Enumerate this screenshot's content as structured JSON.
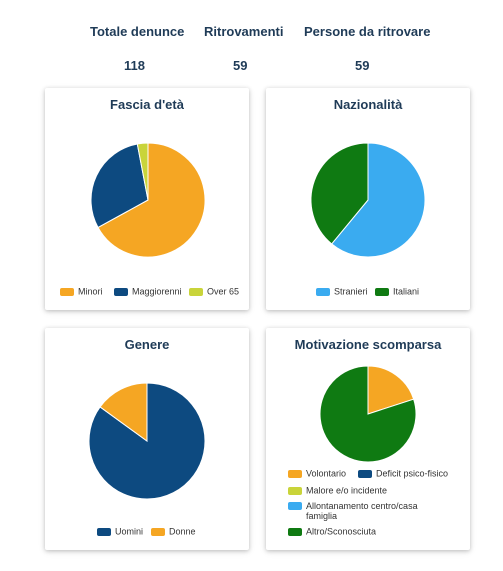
{
  "stats": [
    {
      "label": "Totale denunce",
      "value": "118"
    },
    {
      "label": "Ritrovamenti",
      "value": "59"
    },
    {
      "label": "Persone da ritrovare",
      "value": "59"
    }
  ],
  "chart_data": [
    {
      "type": "pie",
      "title": "Fascia d'età",
      "categories": [
        "Minori",
        "Maggiorenni",
        "Over 65"
      ],
      "values": [
        67,
        30,
        3
      ],
      "colors": [
        "#f5a623",
        "#0d4a80",
        "#c9d43a"
      ],
      "legend": "bottom"
    },
    {
      "type": "pie",
      "title": "Nazionalità",
      "categories": [
        "Stranieri",
        "Italiani"
      ],
      "values": [
        61,
        39
      ],
      "colors": [
        "#3aabf0",
        "#0f7a12"
      ],
      "legend": "bottom"
    },
    {
      "type": "pie",
      "title": "Genere",
      "categories": [
        "Uomini",
        "Donne"
      ],
      "values": [
        85,
        15
      ],
      "colors": [
        "#0d4a80",
        "#f5a623"
      ],
      "legend": "bottom"
    },
    {
      "type": "pie",
      "title": "Motivazione scomparsa",
      "categories": [
        "Volontario",
        "Deficit psico-fisico",
        "Malore e/o incidente",
        "Allontanamento centro/casa famiglia",
        "Altro/Sconosciuta"
      ],
      "values": [
        20,
        0,
        0,
        0,
        80
      ],
      "colors": [
        "#f5a623",
        "#0d4a80",
        "#c9d43a",
        "#3aabf0",
        "#0f7a12"
      ],
      "legend": "bottom"
    }
  ]
}
